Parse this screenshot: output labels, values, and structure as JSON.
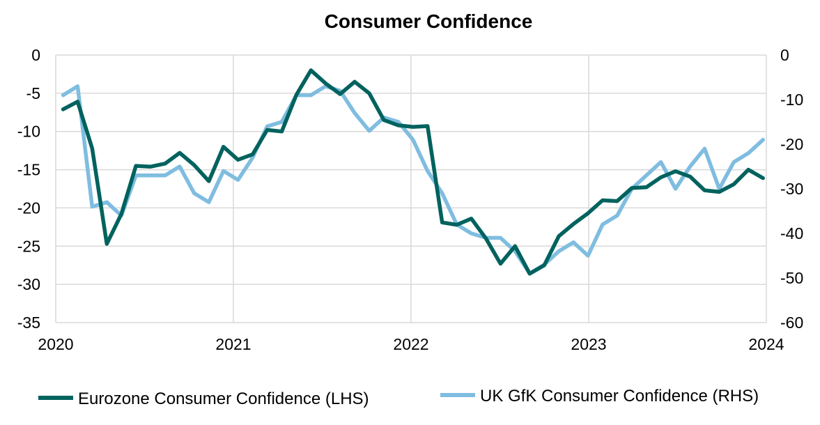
{
  "chart_data": {
    "type": "line",
    "title": "Consumer Confidence",
    "x_start": "2020-01",
    "x_tick_labels": [
      "2020",
      "2021",
      "2022",
      "2023",
      "2024"
    ],
    "y_left": {
      "range": [
        -35,
        0
      ],
      "ticks": [
        "0",
        "-5",
        "-10",
        "-15",
        "-20",
        "-25",
        "-30",
        "-35"
      ]
    },
    "y_right": {
      "range": [
        -60,
        0
      ],
      "ticks": [
        "0",
        "-10",
        "-20",
        "-30",
        "-40",
        "-50",
        "-60"
      ]
    },
    "grid": true,
    "legend": "bottom",
    "series": [
      {
        "name": "Eurozone Consumer Confidence (LHS)",
        "axis": "left",
        "color": "#00625e",
        "values": [
          -7.1,
          -6.1,
          -12.2,
          -24.7,
          -20.8,
          -14.5,
          -14.6,
          -14.2,
          -12.8,
          -14.4,
          -16.5,
          -12.0,
          -13.7,
          -13.0,
          -9.8,
          -10.0,
          -5.2,
          -2.0,
          -3.7,
          -5.1,
          -3.5,
          -5.0,
          -8.5,
          -9.2,
          -9.4,
          -9.3,
          -21.9,
          -22.2,
          -21.4,
          -24.0,
          -27.3,
          -25.0,
          -28.6,
          -27.5,
          -23.7,
          -22.1,
          -20.7,
          -19.0,
          -19.1,
          -17.4,
          -17.3,
          -16.0,
          -15.2,
          -15.9,
          -17.7,
          -17.9,
          -16.9,
          -15.0,
          -16.1
        ]
      },
      {
        "name": "UK GfK Consumer Confidence (RHS)",
        "axis": "right",
        "color": "#7fbde0",
        "values": [
          -9,
          -7,
          -34,
          -33,
          -36,
          -27,
          -27,
          -27,
          -25,
          -31,
          -33,
          -26,
          -28,
          -23,
          -16,
          -15,
          -9,
          -9,
          -7,
          -8,
          -13,
          -17,
          -14,
          -15,
          -19,
          -26,
          -31,
          -38,
          -40,
          -41,
          -41,
          -44,
          -49,
          -47,
          -44,
          -42,
          -45,
          -38,
          -36,
          -30,
          -27,
          -24,
          -30,
          -25,
          -21,
          -30,
          -24,
          -22,
          -19
        ]
      }
    ]
  }
}
